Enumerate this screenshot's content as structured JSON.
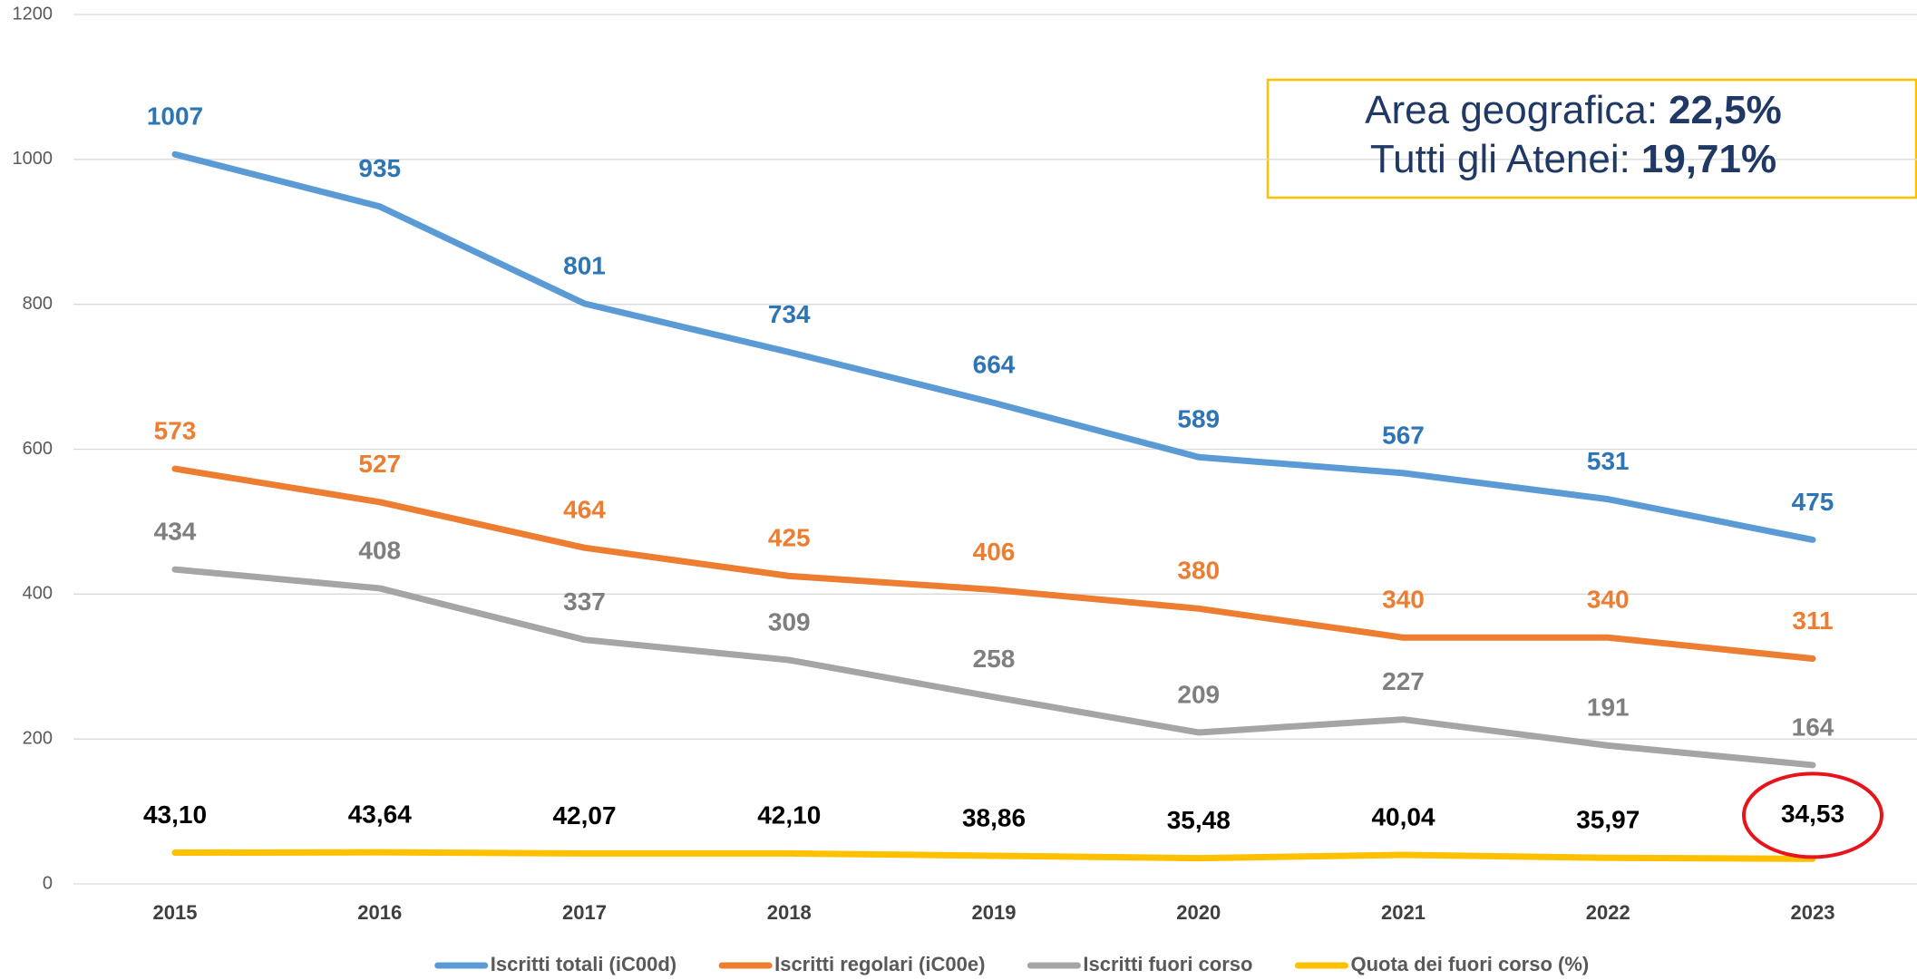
{
  "chart_data": {
    "type": "line",
    "categories": [
      "2015",
      "2016",
      "2017",
      "2018",
      "2019",
      "2020",
      "2021",
      "2022",
      "2023"
    ],
    "series": [
      {
        "name": "Iscritti totali (iC00d)",
        "color": "#5b9bd5",
        "label_color": "#2e75b6",
        "values": [
          1007,
          935,
          801,
          734,
          664,
          589,
          567,
          531,
          475
        ]
      },
      {
        "name": "Iscritti regolari (iC00e)",
        "color": "#ed7d31",
        "label_color": "#ed7d31",
        "values": [
          573,
          527,
          464,
          425,
          406,
          380,
          340,
          340,
          311
        ]
      },
      {
        "name": "Iscritti fuori corso",
        "color": "#a5a5a5",
        "label_color": "#7f7f7f",
        "values": [
          434,
          408,
          337,
          309,
          258,
          209,
          227,
          191,
          164
        ]
      },
      {
        "name": "Quota dei fuori corso (%)",
        "color": "#ffc000",
        "label_color": "#000000",
        "values": [
          43.1,
          43.64,
          42.07,
          42.1,
          38.86,
          35.48,
          40.04,
          35.97,
          34.53
        ],
        "value_labels": [
          "43,10",
          "43,64",
          "42,07",
          "42,10",
          "38,86",
          "35,48",
          "40,04",
          "35,97",
          "34,53"
        ]
      }
    ],
    "ylim": [
      0,
      1200
    ],
    "yticks": [
      0,
      200,
      400,
      600,
      800,
      1000,
      1200
    ],
    "grid": true,
    "legend": "bottom",
    "annotation": [
      {
        "label": "Area geografica:",
        "value": "22,5%"
      },
      {
        "label": "Tutti gli Atenei:",
        "value": "19,71%"
      }
    ]
  }
}
